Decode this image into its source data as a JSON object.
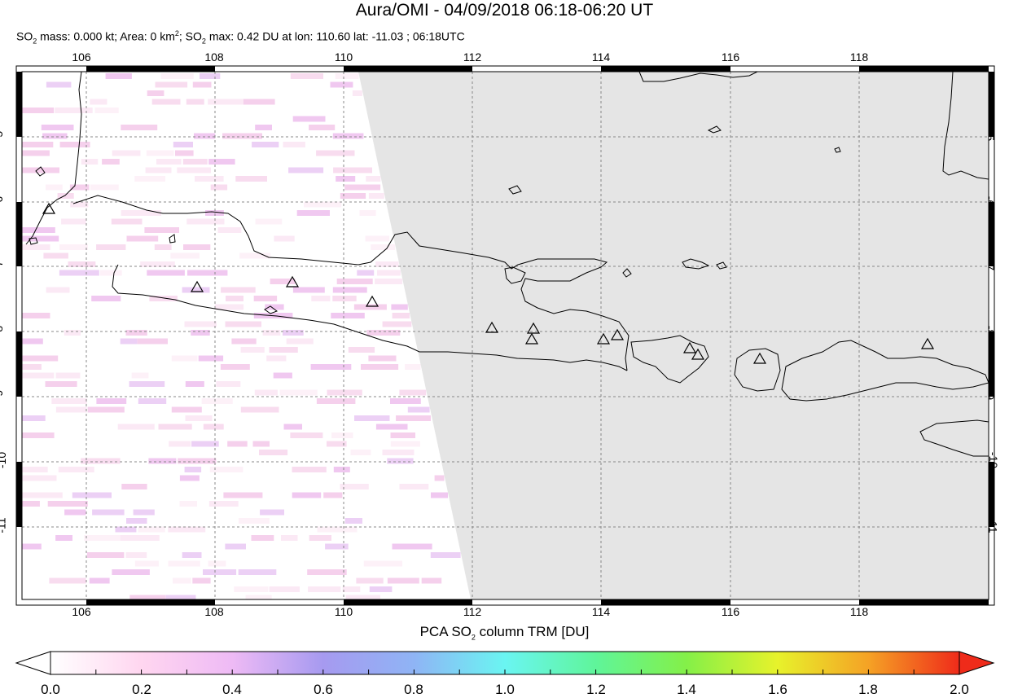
{
  "header": {
    "title": "Aura/OMI - 04/09/2018 06:18-06:20 UT",
    "subtitle_parts": {
      "p1": "SO",
      "p1_sub": "2",
      "p2": " mass: 0.000 kt; Area: 0 km",
      "p2_sup": "2",
      "p3": "; SO",
      "p3_sub": "2",
      "p4": " max: 0.42 DU at lon: 110.60 lat: -11.03 ; 06:18UTC"
    }
  },
  "map": {
    "lon_range": [
      105,
      120
    ],
    "lat_range": [
      -12.2,
      -4.0
    ],
    "lon_ticks": [
      "106",
      "108",
      "110",
      "112",
      "114",
      "116",
      "118"
    ],
    "lat_ticks": [
      "-5",
      "-6",
      "-7",
      "-8",
      "-9",
      "-10",
      "-11"
    ],
    "no_data_color": "#e5e5e5",
    "volcano_marker": "triangle-outline"
  },
  "colorbar": {
    "label_parts": {
      "a": "PCA SO",
      "sub": "2",
      "b": " column TRM [DU]"
    },
    "ticks": [
      "0.0",
      "0.2",
      "0.4",
      "0.6",
      "0.8",
      "1.0",
      "1.2",
      "1.4",
      "1.6",
      "1.8",
      "2.0"
    ],
    "colors": [
      "#ffffff",
      "#ffd6f0",
      "#eebaf5",
      "#a69af0",
      "#8fb4f5",
      "#6af5f2",
      "#5ff59a",
      "#84f048",
      "#e7f22b",
      "#f5a225",
      "#ef2b1a"
    ]
  }
}
